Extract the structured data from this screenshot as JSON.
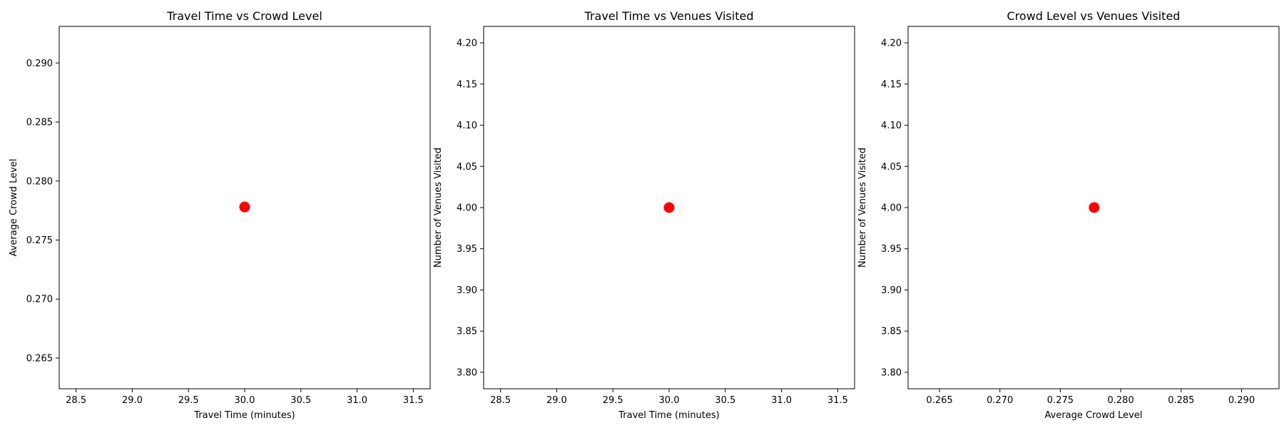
{
  "chart_data": [
    {
      "type": "scatter",
      "title": "Travel Time vs Crowd Level",
      "xlabel": "Travel Time (minutes)",
      "ylabel": "Average Crowd Level",
      "xlim": [
        28.35,
        31.65
      ],
      "ylim": [
        0.2624,
        0.2931
      ],
      "xticks": [
        "28.5",
        "29.0",
        "29.5",
        "30.0",
        "30.5",
        "31.0",
        "31.5"
      ],
      "yticks": [
        "0.265",
        "0.270",
        "0.275",
        "0.280",
        "0.285",
        "0.290"
      ],
      "grid": false,
      "color": "#ff0000",
      "points": [
        {
          "x": 30.0,
          "y": 0.2778
        }
      ]
    },
    {
      "type": "scatter",
      "title": "Travel Time vs Venues Visited",
      "xlabel": "Travel Time (minutes)",
      "ylabel": "Number of Venues Visited",
      "xlim": [
        28.35,
        31.65
      ],
      "ylim": [
        3.78,
        4.22
      ],
      "xticks": [
        "28.5",
        "29.0",
        "29.5",
        "30.0",
        "30.5",
        "31.0",
        "31.5"
      ],
      "yticks": [
        "3.80",
        "3.85",
        "3.90",
        "3.95",
        "4.00",
        "4.05",
        "4.10",
        "4.15",
        "4.20"
      ],
      "grid": false,
      "color": "#ff0000",
      "points": [
        {
          "x": 30.0,
          "y": 4.0
        }
      ]
    },
    {
      "type": "scatter",
      "title": "Crowd Level vs Venues Visited",
      "xlabel": "Average Crowd Level",
      "ylabel": "Number of Venues Visited",
      "xlim": [
        0.2624,
        0.2931
      ],
      "ylim": [
        3.78,
        4.22
      ],
      "xticks": [
        "0.265",
        "0.270",
        "0.275",
        "0.280",
        "0.285",
        "0.290"
      ],
      "yticks": [
        "3.80",
        "3.85",
        "3.90",
        "3.95",
        "4.00",
        "4.05",
        "4.10",
        "4.15",
        "4.20"
      ],
      "grid": false,
      "color": "#ff0000",
      "points": [
        {
          "x": 0.2778,
          "y": 4.0
        }
      ]
    }
  ]
}
